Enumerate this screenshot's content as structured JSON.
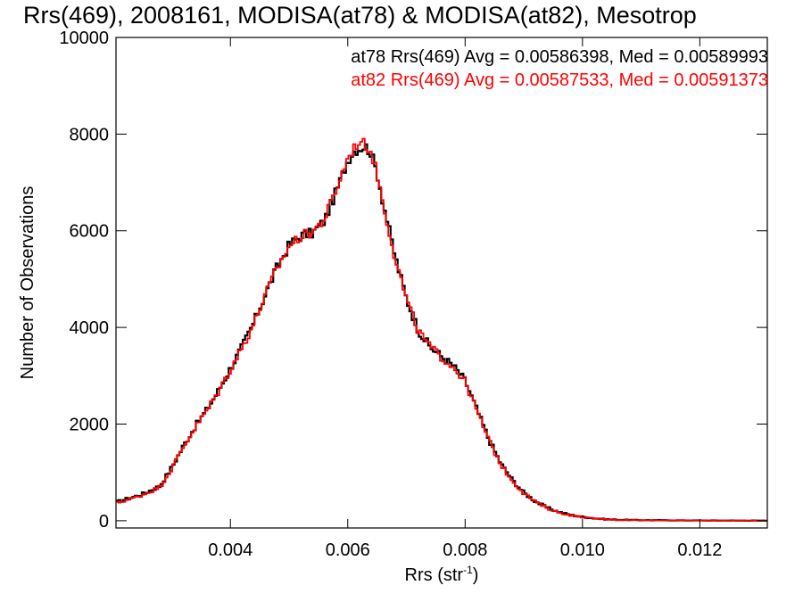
{
  "chart_data": {
    "type": "line",
    "title": "Rrs(469), 2008161, MODISA(at78) & MODISA(at82), Mesotrop",
    "xlabel": "Rrs (str",
    "xlabel_sup": "-1",
    "xlabel_close": ")",
    "ylabel": "Number of Observations",
    "xlim": [
      0.00205,
      0.01315
    ],
    "ylim": [
      -150,
      10000
    ],
    "xticks": [
      {
        "value": 0.004,
        "label": "0.004"
      },
      {
        "value": 0.006,
        "label": "0.006"
      },
      {
        "value": 0.008,
        "label": "0.008"
      },
      {
        "value": 0.01,
        "label": "0.010"
      },
      {
        "value": 0.012,
        "label": "0.012"
      }
    ],
    "yticks": [
      {
        "value": 0,
        "label": "0"
      },
      {
        "value": 2000,
        "label": "2000"
      },
      {
        "value": 4000,
        "label": "4000"
      },
      {
        "value": 6000,
        "label": "6000"
      },
      {
        "value": 8000,
        "label": "8000"
      },
      {
        "value": 10000,
        "label": "10000"
      }
    ],
    "step": 4e-05,
    "annotations": [
      {
        "text": "at78 Rrs(469) Avg = 0.00586398, Med = 0.00589993",
        "color": "#000000"
      },
      {
        "text": "at82 Rrs(469) Avg = 0.00587533, Med = 0.00591373",
        "color": "#ff0000"
      }
    ],
    "series": [
      {
        "color": "#000000",
        "x": [
          0.00205,
          0.0025,
          0.0028,
          0.003,
          0.0032,
          0.0034,
          0.0036,
          0.0038,
          0.004,
          0.0042,
          0.0044,
          0.0046,
          0.0048,
          0.005,
          0.0052,
          0.0054,
          0.0056,
          0.0058,
          0.006,
          0.0061,
          0.0062,
          0.0063,
          0.0064,
          0.0065,
          0.0066,
          0.0068,
          0.007,
          0.0072,
          0.0074,
          0.0076,
          0.0078,
          0.008,
          0.0082,
          0.0084,
          0.0086,
          0.0088,
          0.009,
          0.0092,
          0.0094,
          0.0096,
          0.0098,
          0.01,
          0.0102,
          0.0104,
          0.0106,
          0.011,
          0.0115,
          0.012,
          0.0125,
          0.013,
          0.01315
        ],
        "y": [
          380,
          550,
          720,
          1100,
          1550,
          1950,
          2300,
          2700,
          3150,
          3600,
          4100,
          4700,
          5250,
          5700,
          5900,
          5950,
          6200,
          6800,
          7450,
          7650,
          7700,
          7750,
          7600,
          7200,
          6600,
          5500,
          4600,
          3950,
          3600,
          3400,
          3200,
          2900,
          2300,
          1700,
          1200,
          850,
          580,
          400,
          270,
          180,
          120,
          80,
          50,
          30,
          20,
          12,
          8,
          5,
          3,
          2,
          2
        ]
      },
      {
        "color": "#ff0000",
        "x": [
          0.00205,
          0.0025,
          0.0028,
          0.003,
          0.0032,
          0.0034,
          0.0036,
          0.0038,
          0.004,
          0.0042,
          0.0044,
          0.0046,
          0.0048,
          0.005,
          0.0052,
          0.0054,
          0.0056,
          0.0058,
          0.006,
          0.0061,
          0.0062,
          0.0063,
          0.0064,
          0.0065,
          0.0066,
          0.0068,
          0.007,
          0.0072,
          0.0074,
          0.0076,
          0.0078,
          0.008,
          0.0082,
          0.0084,
          0.0086,
          0.0088,
          0.009,
          0.0092,
          0.0094,
          0.0096,
          0.0098,
          0.01,
          0.0102,
          0.0104,
          0.0106,
          0.011,
          0.0115,
          0.012,
          0.0125,
          0.013,
          0.01315
        ],
        "y": [
          360,
          530,
          700,
          1080,
          1530,
          1930,
          2280,
          2680,
          3130,
          3580,
          4080,
          4680,
          5230,
          5680,
          5880,
          5980,
          6230,
          6830,
          7500,
          7700,
          7850,
          7780,
          7620,
          7180,
          6580,
          5480,
          4580,
          3930,
          3600,
          3380,
          3180,
          2880,
          2280,
          1680,
          1180,
          840,
          570,
          390,
          260,
          170,
          110,
          75,
          45,
          28,
          18,
          10,
          6,
          4,
          2,
          1,
          1
        ]
      }
    ]
  }
}
